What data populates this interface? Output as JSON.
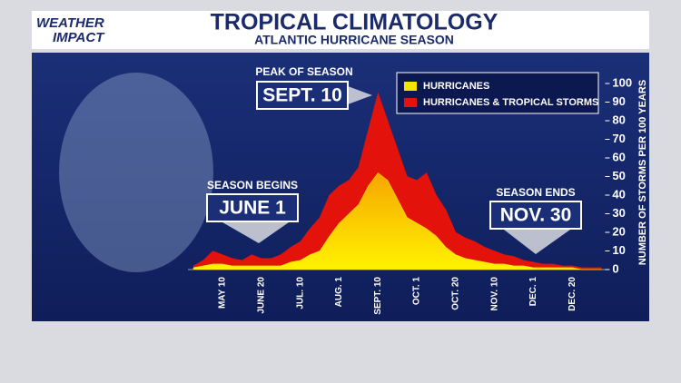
{
  "brand": [
    "WEATHER",
    "IMPACT"
  ],
  "chart_data": {
    "type": "area",
    "title": "TROPICAL CLIMATOLOGY",
    "subtitle": "ATLANTIC HURRICANE SEASON",
    "y_label": "NUMBER OF STORMS PER 100 YEARS",
    "categories": [
      null,
      null,
      null,
      "MAY 10",
      null,
      null,
      null,
      "JUNE 20",
      null,
      null,
      null,
      "JUL. 10",
      null,
      null,
      null,
      "AUG. 1",
      null,
      null,
      null,
      "SEPT. 10",
      null,
      null,
      null,
      "OCT. 1",
      null,
      null,
      null,
      "OCT. 20",
      null,
      null,
      null,
      "NOV. 10",
      null,
      null,
      null,
      "DEC. 1",
      null,
      null,
      null,
      "DEC. 20",
      null,
      null,
      null
    ],
    "series": [
      {
        "name": "HURRICANES & TROPICAL STORMS",
        "color": "#e3120b",
        "values": [
          2,
          5,
          10,
          8,
          6,
          5,
          8,
          6,
          6,
          8,
          12,
          15,
          22,
          28,
          40,
          45,
          48,
          55,
          75,
          95,
          80,
          65,
          50,
          48,
          52,
          40,
          32,
          20,
          17,
          15,
          12,
          10,
          8,
          7,
          5,
          4,
          3,
          3,
          2,
          2,
          1,
          1,
          1
        ]
      },
      {
        "name": "HURRICANES",
        "color": "#f2e600",
        "values": [
          1,
          2,
          3,
          3,
          2,
          2,
          2,
          2,
          2,
          2,
          4,
          5,
          8,
          10,
          18,
          25,
          30,
          35,
          45,
          52,
          48,
          38,
          28,
          25,
          22,
          18,
          12,
          8,
          6,
          5,
          4,
          3,
          3,
          2,
          2,
          1,
          1,
          1,
          1,
          1,
          0,
          0,
          0
        ]
      }
    ],
    "ylim": [
      0,
      100
    ],
    "yticks": [
      0,
      10,
      20,
      30,
      40,
      50,
      60,
      70,
      80,
      90,
      100
    ],
    "legend": "top-right",
    "annotations": [
      {
        "label": "PEAK OF SEASON",
        "text": "SEPT. 10"
      },
      {
        "label": "SEASON BEGINS",
        "text": "JUNE 1"
      },
      {
        "label": "SEASON ENDS",
        "text": "NOV. 30"
      }
    ]
  }
}
